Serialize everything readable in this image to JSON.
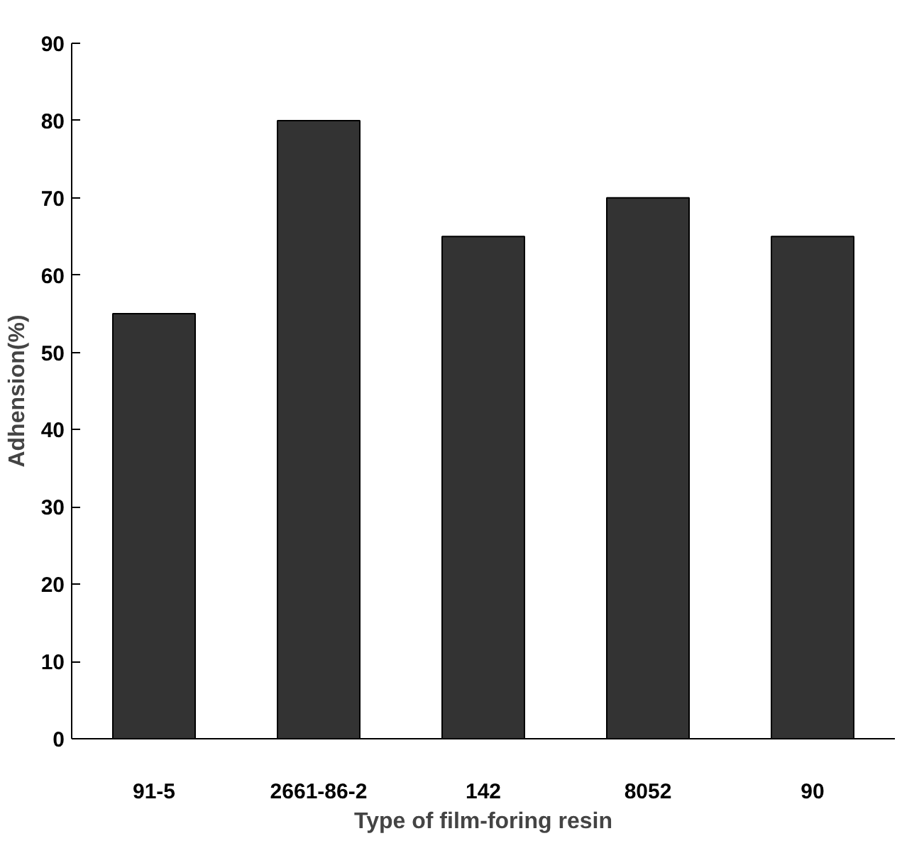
{
  "chart_data": {
    "type": "bar",
    "xlabel": "Type of film-foring resin",
    "ylabel": "Adhension(%)",
    "categories": [
      "91-5",
      "2661-86-2",
      "142",
      "8052",
      "90"
    ],
    "values": [
      55,
      80,
      65,
      70,
      65
    ],
    "color": "#333333",
    "ylim": [
      0,
      90
    ],
    "yticks": [
      0,
      10,
      20,
      30,
      40,
      50,
      60,
      70,
      80,
      90
    ],
    "grid": false
  }
}
